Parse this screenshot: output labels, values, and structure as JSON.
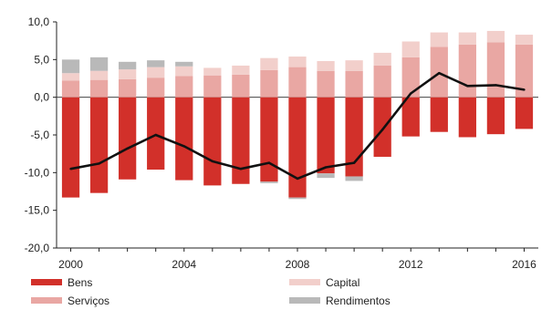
{
  "chart_data": {
    "type": "bar",
    "title": "",
    "xlabel": "",
    "ylabel": "",
    "ylim": [
      -20,
      10
    ],
    "y_ticks": [
      10.0,
      5.0,
      0.0,
      -5.0,
      -10.0,
      -15.0,
      -20.0
    ],
    "y_tick_labels": [
      "10,0",
      "5,0",
      "0,0",
      "-5,0",
      "-10,0",
      "-15,0",
      "-20,0"
    ],
    "categories": [
      2000,
      2001,
      2002,
      2003,
      2004,
      2005,
      2006,
      2007,
      2008,
      2009,
      2010,
      2011,
      2012,
      2013,
      2014,
      2015,
      2016
    ],
    "x_tick_labels": [
      "2000",
      "2004",
      "2008",
      "2012",
      "2016"
    ],
    "grid": false,
    "stacked": true,
    "series": [
      {
        "name": "Bens",
        "kind": "bar",
        "color": "#d2302a",
        "values": [
          -13.3,
          -12.7,
          -10.9,
          -9.6,
          -11.0,
          -11.7,
          -11.5,
          -11.2,
          -13.3,
          -10.1,
          -10.5,
          -7.9,
          -5.2,
          -4.6,
          -5.3,
          -4.9,
          -4.2
        ]
      },
      {
        "name": "Serviços",
        "kind": "bar",
        "color": "#e9a7a3",
        "values": [
          2.2,
          2.3,
          2.4,
          2.6,
          2.8,
          2.9,
          3.0,
          3.6,
          4.0,
          3.5,
          3.5,
          4.2,
          5.3,
          6.7,
          7.0,
          7.3,
          7.0
        ]
      },
      {
        "name": "Capital",
        "kind": "bar",
        "color": "#f2cfcb",
        "values": [
          1.0,
          1.2,
          1.3,
          1.4,
          1.3,
          1.0,
          1.2,
          1.6,
          1.4,
          1.3,
          1.4,
          1.7,
          2.1,
          1.9,
          1.6,
          1.5,
          1.3
        ]
      },
      {
        "name": "Rendimentos",
        "kind": "bar",
        "color": "#b9b9b9",
        "values": [
          1.8,
          1.8,
          1.0,
          0.9,
          0.6,
          0.0,
          0.0,
          -0.2,
          -0.2,
          -0.6,
          -0.6,
          0.0,
          0.0,
          0.0,
          0.0,
          0.0,
          0.0
        ]
      },
      {
        "kind": "line",
        "color": "#111111",
        "values": [
          -9.5,
          -8.8,
          -6.8,
          -5.0,
          -6.5,
          -8.5,
          -9.5,
          -8.7,
          -10.8,
          -9.3,
          -8.7,
          -4.3,
          0.5,
          3.2,
          1.5,
          1.6,
          1.0
        ]
      }
    ],
    "legend": {
      "placement": "bottom",
      "items": [
        "Bens",
        "Serviços",
        "Capital",
        "Rendimentos"
      ]
    }
  }
}
